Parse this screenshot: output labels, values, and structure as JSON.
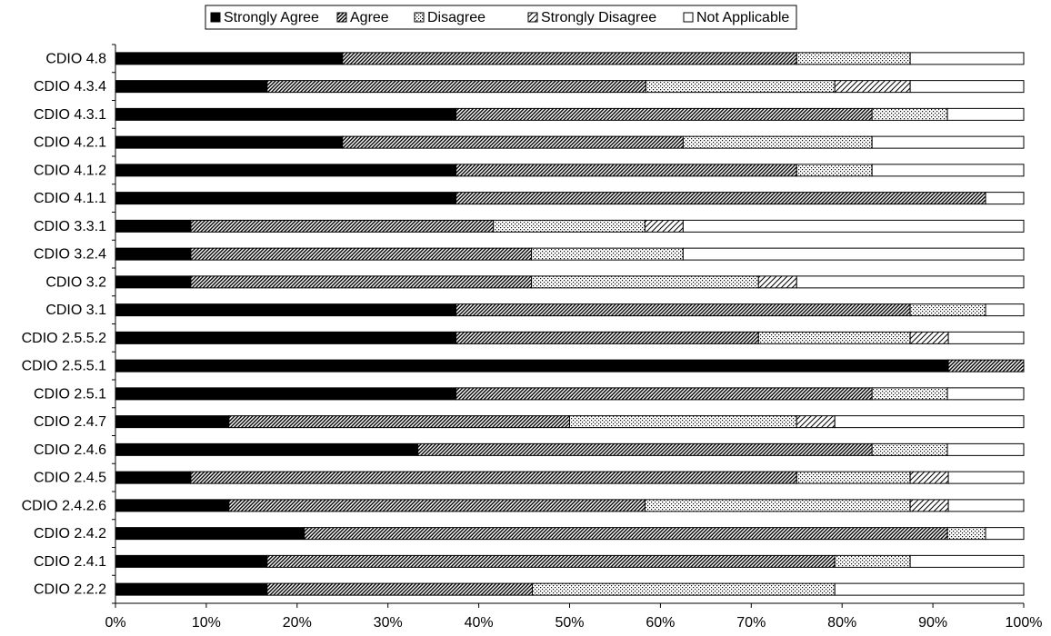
{
  "chart_data": {
    "type": "bar",
    "orientation": "horizontal",
    "stacked": true,
    "percent_stacked": true,
    "title": "",
    "xlabel": "",
    "ylabel": "",
    "xlim": [
      0,
      100
    ],
    "x_ticks": [
      "0%",
      "10%",
      "20%",
      "30%",
      "40%",
      "50%",
      "60%",
      "70%",
      "80%",
      "90%",
      "100%"
    ],
    "grid": false,
    "legend_position": "top",
    "categories": [
      "CDIO 4.8",
      "CDIO 4.3.4",
      "CDIO 4.3.1",
      "CDIO 4.2.1",
      "CDIO 4.1.2",
      "CDIO 4.1.1",
      "CDIO 3.3.1",
      "CDIO 3.2.4",
      "CDIO 3.2",
      "CDIO 3.1",
      "CDIO 2.5.5.2",
      "CDIO 2.5.5.1",
      "CDIO 2.5.1",
      "CDIO 2.4.7",
      "CDIO 2.4.6",
      "CDIO 2.4.5",
      "CDIO 2.4.2.6",
      "CDIO 2.4.2",
      "CDIO 2.4.1",
      "CDIO 2.2.2"
    ],
    "series": [
      {
        "name": "Strongly Agree",
        "pattern": "solid-black",
        "values": [
          25,
          16.7,
          37.5,
          25,
          37.5,
          37.5,
          8.3,
          8.3,
          8.3,
          37.5,
          37.5,
          91.7,
          37.5,
          12.5,
          33.3,
          8.3,
          12.5,
          20.8,
          16.7,
          16.7
        ]
      },
      {
        "name": "Agree",
        "pattern": "dense-diagonal-hatch",
        "values": [
          50,
          41.7,
          45.8,
          37.5,
          37.5,
          58.3,
          33.3,
          37.5,
          37.5,
          50,
          33.3,
          8.3,
          45.8,
          37.5,
          50,
          66.7,
          45.8,
          70.8,
          62.5,
          29.2
        ]
      },
      {
        "name": "Disagree",
        "pattern": "dots",
        "values": [
          12.5,
          20.8,
          8.3,
          20.8,
          8.3,
          0,
          16.7,
          16.7,
          25,
          8.3,
          16.7,
          0,
          8.3,
          25,
          8.3,
          12.5,
          29.2,
          4.2,
          8.3,
          33.3
        ]
      },
      {
        "name": "Strongly Disagree",
        "pattern": "sparse-diagonal-hatch",
        "values": [
          0,
          8.3,
          0,
          0,
          0,
          0,
          4.2,
          0,
          4.2,
          0,
          4.2,
          0,
          0,
          4.2,
          0,
          4.2,
          4.2,
          0,
          0,
          0
        ]
      },
      {
        "name": "Not Applicable",
        "pattern": "white",
        "values": [
          12.5,
          12.5,
          8.4,
          16.7,
          16.7,
          4.2,
          37.5,
          37.5,
          25,
          4.2,
          8.3,
          0,
          8.4,
          20.8,
          8.4,
          8.3,
          8.3,
          4.2,
          12.5,
          20.8
        ]
      }
    ]
  }
}
